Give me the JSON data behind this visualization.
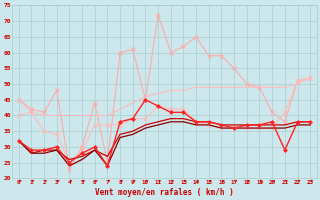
{
  "x": [
    0,
    1,
    2,
    3,
    4,
    5,
    6,
    7,
    8,
    9,
    10,
    11,
    12,
    13,
    14,
    15,
    16,
    17,
    18,
    19,
    20,
    21,
    22,
    23
  ],
  "series": [
    {
      "values": [
        45,
        42,
        41,
        48,
        23,
        30,
        44,
        25,
        60,
        61,
        45,
        72,
        60,
        62,
        65,
        59,
        59,
        55,
        50,
        49,
        41,
        38,
        51,
        52
      ],
      "color": "#ffaaaa",
      "lw": 0.8,
      "marker": "x",
      "ms": 3,
      "mew": 0.7,
      "zorder": 2
    },
    {
      "values": [
        45,
        41,
        40,
        40,
        40,
        40,
        40,
        40,
        42,
        44,
        46,
        47,
        48,
        48,
        49,
        49,
        49,
        49,
        49,
        49,
        49,
        49,
        50,
        52
      ],
      "color": "#ffbbbb",
      "lw": 0.8,
      "marker": null,
      "ms": 0,
      "mew": 0,
      "zorder": 2
    },
    {
      "values": [
        40,
        41,
        35,
        34,
        25,
        29,
        37,
        37,
        37,
        39,
        39,
        43,
        42,
        42,
        38,
        37,
        36,
        36,
        36,
        36,
        36,
        41,
        51,
        52
      ],
      "color": "#ffbbbb",
      "lw": 0.8,
      "marker": "x",
      "ms": 2.5,
      "mew": 0.7,
      "zorder": 2
    },
    {
      "values": [
        32,
        29,
        29,
        30,
        25,
        28,
        30,
        24,
        38,
        39,
        45,
        43,
        41,
        41,
        38,
        38,
        37,
        36,
        37,
        37,
        38,
        29,
        38,
        38
      ],
      "color": "#ff2222",
      "lw": 1.0,
      "marker": "D",
      "ms": 2,
      "mew": 0.5,
      "zorder": 4
    },
    {
      "values": [
        32,
        28,
        29,
        29,
        26,
        27,
        29,
        27,
        34,
        35,
        37,
        38,
        39,
        39,
        38,
        38,
        37,
        37,
        37,
        37,
        37,
        37,
        38,
        38
      ],
      "color": "#cc0000",
      "lw": 0.9,
      "marker": null,
      "ms": 0,
      "mew": 0,
      "zorder": 3
    },
    {
      "values": [
        32,
        28,
        28,
        29,
        24,
        26,
        29,
        24,
        33,
        34,
        36,
        37,
        38,
        38,
        37,
        37,
        36,
        36,
        36,
        36,
        36,
        36,
        37,
        37
      ],
      "color": "#880000",
      "lw": 0.9,
      "marker": null,
      "ms": 0,
      "mew": 0,
      "zorder": 3
    }
  ],
  "background_color": "#cce8ec",
  "grid_color": "#aacccc",
  "ylim": [
    20,
    75
  ],
  "yticks": [
    20,
    25,
    30,
    35,
    40,
    45,
    50,
    55,
    60,
    65,
    70,
    75
  ],
  "xlim": [
    -0.5,
    23.5
  ],
  "xlabel": "Vent moyen/en rafales ( km/h )",
  "label_color": "#cc0000",
  "tick_color": "#cc0000",
  "arrow_color": "#cc0000"
}
